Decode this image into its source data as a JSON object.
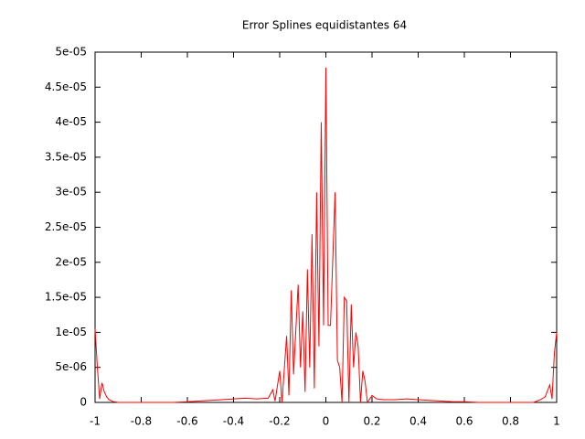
{
  "chart_data": {
    "type": "line",
    "title": "Error Splines equidistantes 64",
    "x": [
      -1,
      -0.99,
      -0.98,
      -0.97,
      -0.96,
      -0.95,
      -0.94,
      -0.92,
      -0.9,
      -0.66,
      -0.6,
      -0.55,
      -0.5,
      -0.45,
      -0.4,
      -0.35,
      -0.3,
      -0.25,
      -0.23,
      -0.22,
      -0.2,
      -0.19,
      -0.17,
      -0.16,
      -0.15,
      -0.14,
      -0.12,
      -0.11,
      -0.1,
      -0.09,
      -0.08,
      -0.07,
      -0.06,
      -0.05,
      -0.04,
      -0.03,
      -0.02,
      -0.01,
      0,
      0.01,
      0.02,
      0.04,
      0.05,
      0.06,
      0.07,
      0.08,
      0.09,
      0.1,
      0.11,
      0.12,
      0.13,
      0.14,
      0.15,
      0.16,
      0.17,
      0.18,
      0.2,
      0.22,
      0.25,
      0.3,
      0.35,
      0.4,
      0.45,
      0.5,
      0.55,
      0.6,
      0.66,
      0.9,
      0.93,
      0.95,
      0.97,
      0.98,
      0.99,
      1
    ],
    "series": [
      {
        "color": "#ff0000",
        "values": [
          1.05e-05,
          5e-06,
          5e-07,
          2.8e-06,
          1.5e-06,
          8e-07,
          4e-07,
          1e-07,
          0,
          0,
          1e-07,
          2e-07,
          3e-07,
          4e-07,
          5e-07,
          6e-07,
          5e-07,
          6e-07,
          1.8e-06,
          2e-07,
          4.5e-06,
          0,
          9.5e-06,
          1e-06,
          1.6e-05,
          4e-06,
          1.68e-05,
          5e-06,
          1.3e-05,
          1.5e-06,
          1.9e-05,
          5e-06,
          2.4e-05,
          2e-06,
          3e-05,
          8e-06,
          4e-05,
          1.1e-05,
          4.78e-05,
          1.1e-05,
          1.1e-05,
          3e-05,
          6e-06,
          5e-06,
          0,
          1.5e-05,
          1.45e-05,
          0,
          1.4e-05,
          5e-06,
          1e-05,
          8e-06,
          0,
          4.5e-06,
          3e-06,
          0,
          1e-06,
          5e-07,
          4e-07,
          4e-07,
          5e-07,
          4e-07,
          3e-07,
          2e-07,
          1e-07,
          1e-07,
          0,
          0,
          4e-07,
          8e-07,
          2.5e-06,
          5e-07,
          7e-06,
          1e-05
        ]
      }
    ],
    "xlim": [
      -1,
      1
    ],
    "xticks": [
      -1,
      -0.8,
      -0.6,
      -0.4,
      -0.2,
      0,
      0.2,
      0.4,
      0.6,
      0.8,
      1
    ],
    "ylim": [
      0,
      5e-05
    ],
    "yticks": [
      0,
      {
        "value": 5e-06,
        "label": "5e-06"
      },
      {
        "value": 1e-05,
        "label": "1e-05"
      },
      {
        "value": 1.5e-05,
        "label": "1.5e-05"
      },
      {
        "value": 2e-05,
        "label": "2e-05"
      },
      {
        "value": 2.5e-05,
        "label": "2.5e-05"
      },
      {
        "value": 3e-05,
        "label": "3e-05"
      },
      {
        "value": 3.5e-05,
        "label": "3.5e-05"
      },
      {
        "value": 4e-05,
        "label": "4e-05"
      },
      {
        "value": 4.5e-05,
        "label": "4.5e-05"
      },
      {
        "value": 5e-05,
        "label": "5e-05"
      }
    ]
  }
}
